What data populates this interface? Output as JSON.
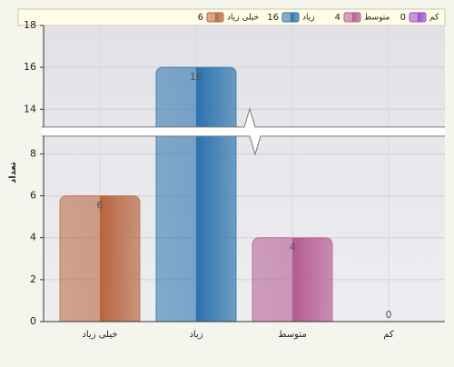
{
  "chart_data": {
    "type": "bar",
    "y_label": "تعداد",
    "categories": [
      "خیلی زیاد",
      "زیاد",
      "متوسط",
      "کم"
    ],
    "values": [
      6,
      16,
      4,
      0
    ],
    "colors": [
      "#b8643f",
      "#2b72ad",
      "#b45b8f",
      "#9b4fc8"
    ],
    "ylim": [
      0,
      18
    ],
    "yticks": [
      0,
      2,
      4,
      6,
      8,
      14,
      16,
      18
    ],
    "y_break": [
      9,
      13
    ],
    "grid": true
  }
}
